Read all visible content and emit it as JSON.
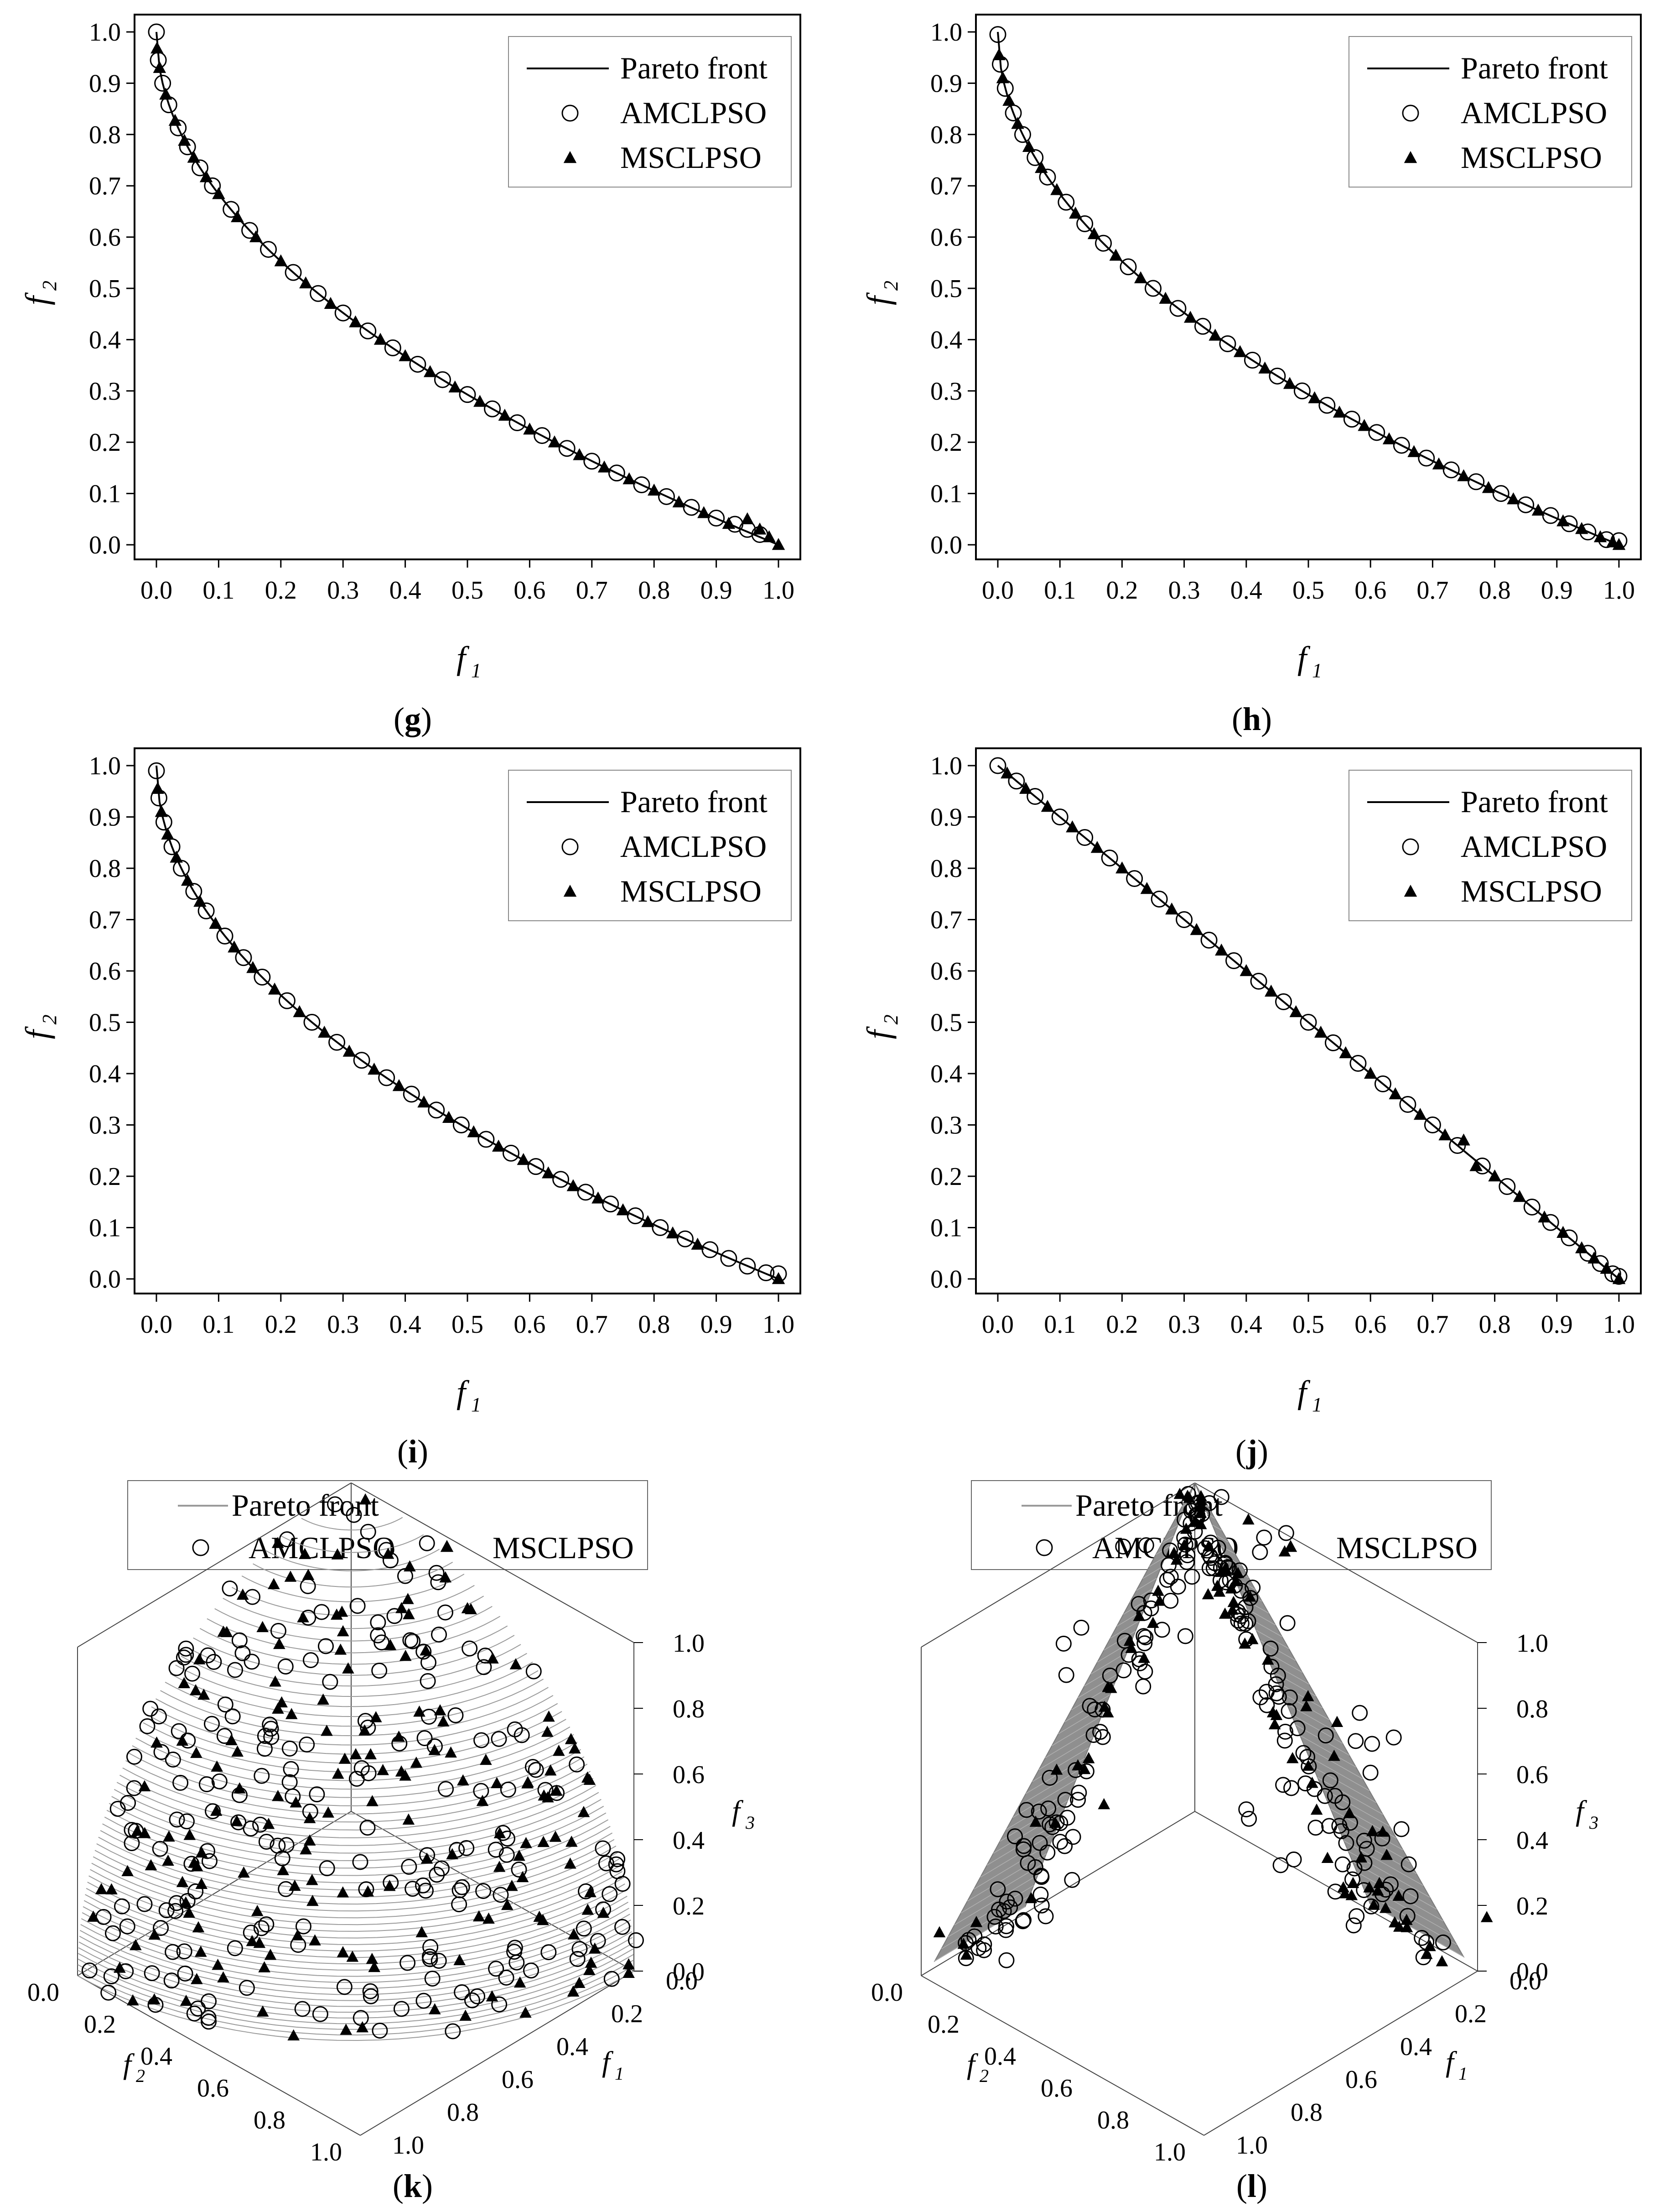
{
  "legend_labels": {
    "front": "Pareto front",
    "amclpso": "AMCLPSO",
    "msclpso": "MSCLPSO"
  },
  "colors": {
    "axis": "#000000",
    "front2d": "#000000",
    "surface3d": "#9a9a9a",
    "circle": "#000000",
    "triangle": "#000000"
  },
  "chart_data": [
    {
      "id": "g",
      "type": "scatter",
      "caption": "g",
      "xlabel": "f",
      "xlabel_sub": "1",
      "ylabel": "f",
      "ylabel_sub": "2",
      "xlim": [
        0,
        1
      ],
      "ylim": [
        0,
        1
      ],
      "xticks": [
        "0.0",
        "0.1",
        "0.2",
        "0.3",
        "0.4",
        "0.5",
        "0.6",
        "0.7",
        "0.8",
        "0.9",
        "1.0"
      ],
      "yticks": [
        "0.0",
        "0.1",
        "0.2",
        "0.3",
        "0.4",
        "0.5",
        "0.6",
        "0.7",
        "0.8",
        "0.9",
        "1.0"
      ],
      "legend": [
        "Pareto front",
        "AMCLPSO",
        "MSCLPSO"
      ],
      "front": "1 - sqrt(f1)",
      "series": [
        {
          "name": "AMCLPSO",
          "marker": "circle",
          "x": [
            0.0,
            0.003,
            0.01,
            0.02,
            0.035,
            0.05,
            0.07,
            0.09,
            0.12,
            0.15,
            0.18,
            0.22,
            0.26,
            0.3,
            0.34,
            0.38,
            0.42,
            0.46,
            0.5,
            0.54,
            0.58,
            0.62,
            0.66,
            0.7,
            0.74,
            0.78,
            0.82,
            0.86,
            0.9,
            0.93,
            0.95,
            0.97
          ],
          "y": [
            1.0,
            0.945,
            0.9,
            0.858,
            0.813,
            0.776,
            0.735,
            0.7,
            0.654,
            0.613,
            0.576,
            0.531,
            0.49,
            0.452,
            0.417,
            0.384,
            0.352,
            0.322,
            0.293,
            0.265,
            0.238,
            0.213,
            0.188,
            0.163,
            0.14,
            0.117,
            0.094,
            0.073,
            0.052,
            0.04,
            0.03,
            0.02
          ]
        },
        {
          "name": "MSCLPSO",
          "marker": "triangle",
          "x": [
            0.001,
            0.005,
            0.015,
            0.03,
            0.045,
            0.06,
            0.08,
            0.1,
            0.13,
            0.16,
            0.2,
            0.24,
            0.28,
            0.32,
            0.36,
            0.4,
            0.44,
            0.48,
            0.52,
            0.56,
            0.6,
            0.64,
            0.68,
            0.72,
            0.76,
            0.8,
            0.84,
            0.88,
            0.92,
            0.95,
            0.97,
            0.985,
            1.0
          ],
          "y": [
            0.968,
            0.93,
            0.878,
            0.827,
            0.788,
            0.755,
            0.717,
            0.684,
            0.639,
            0.6,
            0.553,
            0.51,
            0.47,
            0.434,
            0.4,
            0.368,
            0.337,
            0.307,
            0.279,
            0.252,
            0.225,
            0.2,
            0.175,
            0.151,
            0.128,
            0.106,
            0.083,
            0.062,
            0.041,
            0.05,
            0.03,
            0.015,
            0.0
          ]
        }
      ]
    },
    {
      "id": "h",
      "type": "scatter",
      "caption": "h",
      "xlabel": "f",
      "xlabel_sub": "1",
      "ylabel": "f",
      "ylabel_sub": "2",
      "xlim": [
        0,
        1
      ],
      "ylim": [
        0,
        1
      ],
      "xticks": [
        "0.0",
        "0.1",
        "0.2",
        "0.3",
        "0.4",
        "0.5",
        "0.6",
        "0.7",
        "0.8",
        "0.9",
        "1.0"
      ],
      "yticks": [
        "0.0",
        "0.1",
        "0.2",
        "0.3",
        "0.4",
        "0.5",
        "0.6",
        "0.7",
        "0.8",
        "0.9",
        "1.0"
      ],
      "legend": [
        "Pareto front",
        "AMCLPSO",
        "MSCLPSO"
      ],
      "front": "1 - sqrt(f1)",
      "series": [
        {
          "name": "AMCLPSO",
          "marker": "circle",
          "x": [
            0.0,
            0.004,
            0.012,
            0.025,
            0.04,
            0.06,
            0.08,
            0.11,
            0.14,
            0.17,
            0.21,
            0.25,
            0.29,
            0.33,
            0.37,
            0.41,
            0.45,
            0.49,
            0.53,
            0.57,
            0.61,
            0.65,
            0.69,
            0.73,
            0.77,
            0.81,
            0.85,
            0.89,
            0.92,
            0.95,
            0.98,
            1.0
          ],
          "y": [
            0.995,
            0.937,
            0.89,
            0.842,
            0.8,
            0.755,
            0.717,
            0.668,
            0.626,
            0.588,
            0.542,
            0.5,
            0.461,
            0.426,
            0.392,
            0.36,
            0.329,
            0.3,
            0.272,
            0.245,
            0.219,
            0.194,
            0.169,
            0.146,
            0.123,
            0.1,
            0.078,
            0.057,
            0.041,
            0.025,
            0.01,
            0.008
          ]
        },
        {
          "name": "MSCLPSO",
          "marker": "triangle",
          "x": [
            0.002,
            0.008,
            0.018,
            0.032,
            0.05,
            0.07,
            0.095,
            0.125,
            0.155,
            0.19,
            0.23,
            0.27,
            0.31,
            0.35,
            0.39,
            0.43,
            0.47,
            0.51,
            0.55,
            0.59,
            0.63,
            0.67,
            0.71,
            0.75,
            0.79,
            0.83,
            0.87,
            0.91,
            0.94,
            0.97,
            0.99,
            1.0
          ],
          "y": [
            0.955,
            0.91,
            0.866,
            0.821,
            0.776,
            0.735,
            0.692,
            0.646,
            0.606,
            0.564,
            0.52,
            0.48,
            0.443,
            0.408,
            0.376,
            0.344,
            0.314,
            0.286,
            0.258,
            0.232,
            0.206,
            0.181,
            0.157,
            0.134,
            0.111,
            0.089,
            0.067,
            0.046,
            0.031,
            0.015,
            0.005,
            0.0
          ]
        }
      ]
    },
    {
      "id": "i",
      "type": "scatter",
      "caption": "i",
      "xlabel": "f",
      "xlabel_sub": "1",
      "ylabel": "f",
      "ylabel_sub": "2",
      "xlim": [
        0,
        1
      ],
      "ylim": [
        0,
        1
      ],
      "xticks": [
        "0.0",
        "0.1",
        "0.2",
        "0.3",
        "0.4",
        "0.5",
        "0.6",
        "0.7",
        "0.8",
        "0.9",
        "1.0"
      ],
      "yticks": [
        "0.0",
        "0.1",
        "0.2",
        "0.3",
        "0.4",
        "0.5",
        "0.6",
        "0.7",
        "0.8",
        "0.9",
        "1.0"
      ],
      "legend": [
        "Pareto front",
        "AMCLPSO",
        "MSCLPSO"
      ],
      "front": "1 - sqrt(f1)",
      "series": [
        {
          "name": "AMCLPSO",
          "marker": "circle",
          "x": [
            0.0,
            0.004,
            0.012,
            0.025,
            0.04,
            0.06,
            0.08,
            0.11,
            0.14,
            0.17,
            0.21,
            0.25,
            0.29,
            0.33,
            0.37,
            0.41,
            0.45,
            0.49,
            0.53,
            0.57,
            0.61,
            0.65,
            0.69,
            0.73,
            0.77,
            0.81,
            0.85,
            0.89,
            0.92,
            0.95,
            0.98,
            1.0
          ],
          "y": [
            0.99,
            0.937,
            0.89,
            0.842,
            0.8,
            0.755,
            0.717,
            0.668,
            0.626,
            0.588,
            0.542,
            0.5,
            0.461,
            0.426,
            0.392,
            0.36,
            0.329,
            0.3,
            0.272,
            0.245,
            0.219,
            0.194,
            0.169,
            0.146,
            0.123,
            0.1,
            0.078,
            0.057,
            0.04,
            0.025,
            0.012,
            0.01
          ]
        },
        {
          "name": "MSCLPSO",
          "marker": "triangle",
          "x": [
            0.002,
            0.008,
            0.018,
            0.032,
            0.05,
            0.07,
            0.095,
            0.125,
            0.155,
            0.19,
            0.23,
            0.27,
            0.31,
            0.35,
            0.39,
            0.43,
            0.47,
            0.51,
            0.55,
            0.59,
            0.63,
            0.67,
            0.71,
            0.75,
            0.79,
            0.83,
            0.87,
            1.0
          ],
          "y": [
            0.955,
            0.91,
            0.866,
            0.821,
            0.776,
            0.735,
            0.692,
            0.646,
            0.606,
            0.564,
            0.52,
            0.48,
            0.443,
            0.408,
            0.376,
            0.344,
            0.314,
            0.286,
            0.258,
            0.232,
            0.206,
            0.181,
            0.157,
            0.134,
            0.111,
            0.089,
            0.067,
            0.0
          ]
        }
      ]
    },
    {
      "id": "j",
      "type": "scatter",
      "caption": "j",
      "xlabel": "f",
      "xlabel_sub": "1",
      "ylabel": "f",
      "ylabel_sub": "2",
      "xlim": [
        0,
        1
      ],
      "ylim": [
        0,
        1
      ],
      "xticks": [
        "0.0",
        "0.1",
        "0.2",
        "0.3",
        "0.4",
        "0.5",
        "0.6",
        "0.7",
        "0.8",
        "0.9",
        "1.0"
      ],
      "yticks": [
        "0.0",
        "0.1",
        "0.2",
        "0.3",
        "0.4",
        "0.5",
        "0.6",
        "0.7",
        "0.8",
        "0.9",
        "1.0"
      ],
      "legend": [
        "Pareto front",
        "AMCLPSO",
        "MSCLPSO"
      ],
      "front": "1 - f1",
      "series": [
        {
          "name": "AMCLPSO",
          "marker": "circle",
          "x": [
            0.0,
            0.03,
            0.06,
            0.1,
            0.14,
            0.18,
            0.22,
            0.26,
            0.3,
            0.34,
            0.38,
            0.42,
            0.46,
            0.5,
            0.54,
            0.58,
            0.62,
            0.66,
            0.7,
            0.74,
            0.78,
            0.82,
            0.86,
            0.89,
            0.92,
            0.95,
            0.97,
            0.99,
            1.0
          ],
          "y": [
            1.0,
            0.97,
            0.94,
            0.9,
            0.86,
            0.82,
            0.78,
            0.74,
            0.7,
            0.66,
            0.62,
            0.58,
            0.54,
            0.5,
            0.46,
            0.42,
            0.38,
            0.34,
            0.3,
            0.26,
            0.22,
            0.18,
            0.14,
            0.11,
            0.08,
            0.05,
            0.03,
            0.01,
            0.005
          ]
        },
        {
          "name": "MSCLPSO",
          "marker": "triangle",
          "x": [
            0.015,
            0.045,
            0.08,
            0.12,
            0.16,
            0.2,
            0.24,
            0.28,
            0.32,
            0.36,
            0.4,
            0.44,
            0.48,
            0.52,
            0.56,
            0.6,
            0.64,
            0.68,
            0.72,
            0.75,
            0.77,
            0.8,
            0.84,
            0.88,
            0.91,
            0.94,
            0.96,
            0.98,
            1.0
          ],
          "y": [
            0.985,
            0.955,
            0.92,
            0.88,
            0.84,
            0.8,
            0.76,
            0.72,
            0.68,
            0.64,
            0.6,
            0.56,
            0.52,
            0.48,
            0.44,
            0.4,
            0.36,
            0.32,
            0.28,
            0.27,
            0.22,
            0.2,
            0.16,
            0.12,
            0.09,
            0.06,
            0.04,
            0.02,
            0.0
          ]
        }
      ]
    },
    {
      "id": "k",
      "type": "scatter3d",
      "caption": "k",
      "xlabel": "f",
      "xlabel_sub": "1",
      "ylabel": "f",
      "ylabel_sub": "2",
      "zlabel": "f",
      "zlabel_sub": "3",
      "xlim": [
        0,
        1
      ],
      "ylim": [
        0,
        1
      ],
      "zlim": [
        0,
        1
      ],
      "zticks": [
        "0.0",
        "0.2",
        "0.4",
        "0.6",
        "0.8",
        "1.0"
      ],
      "xticks": [
        "0.0",
        "0.2",
        "0.4",
        "0.6",
        "0.8",
        "1.0"
      ],
      "yticks": [
        "0.0",
        "0.2",
        "0.4",
        "0.6",
        "0.8",
        "1.0"
      ],
      "legend": [
        "Pareto front",
        "AMCLPSO",
        "MSCLPSO"
      ],
      "front": "sphere f1^2 + f2^2 + f3^2 = 1",
      "points_note": "approx. 220 AMCLPSO and 180 MSCLPSO points spread over the spherical front"
    },
    {
      "id": "l",
      "type": "scatter3d",
      "caption": "l",
      "xlabel": "f",
      "xlabel_sub": "1",
      "ylabel": "f",
      "ylabel_sub": "2",
      "zlabel": "f",
      "zlabel_sub": "3",
      "xlim": [
        0,
        1
      ],
      "ylim": [
        0,
        1
      ],
      "zlim": [
        0,
        1
      ],
      "zticks": [
        "0.0",
        "0.2",
        "0.4",
        "0.6",
        "0.8",
        "1.0"
      ],
      "xticks": [
        "0.0",
        "0.2",
        "0.4",
        "0.6",
        "0.8",
        "1.0"
      ],
      "yticks": [
        "0.0",
        "0.2",
        "0.4",
        "0.6",
        "0.8",
        "1.0"
      ],
      "legend": [
        "Pareto front",
        "AMCLPSO",
        "MSCLPSO"
      ],
      "front": "two planar strips meeting at f3 = 1",
      "points_note": "approx. 200 AMCLPSO and 90 MSCLPSO points on and around the two strips"
    }
  ]
}
